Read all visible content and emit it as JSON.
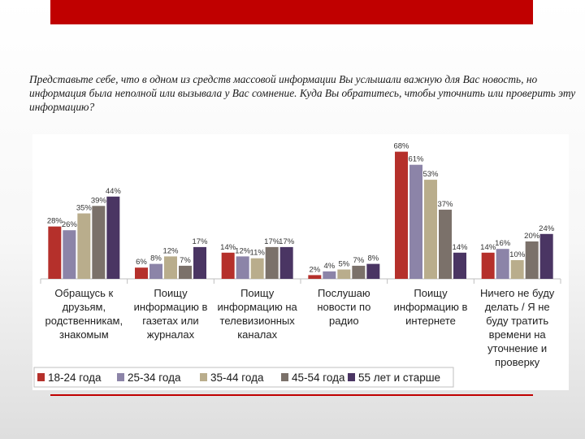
{
  "slide": {
    "question": "Представьте себе, что в одном из средств массовой информации Вы услышали важную для Вас новость, но информация была неполной или вызывала у Вас сомнение. Куда Вы обратитесь, чтобы уточнить или проверить эту информацию?"
  },
  "colors": {
    "accent": "#c00000",
    "series": [
      "#b5302b",
      "#8c84a8",
      "#b9ad8c",
      "#7b716a",
      "#4a3563"
    ]
  },
  "chart_data": {
    "type": "bar",
    "title": "",
    "xlabel": "",
    "ylabel": "",
    "ylim": [
      0,
      70
    ],
    "grid": false,
    "legend_position": "bottom-left",
    "categories": [
      [
        "Обращусь к",
        "друзьям,",
        "родственникам,",
        "знакомым"
      ],
      [
        "Поищу",
        "информацию в",
        "газетах или",
        "журналах"
      ],
      [
        "Поищу",
        "информацию на",
        "телевизионных",
        "каналах"
      ],
      [
        "Послушаю",
        "новости по",
        "радио"
      ],
      [
        "Поищу",
        "информацию в",
        "интернете"
      ],
      [
        "Ничего не буду",
        "делать / Я не",
        "буду тратить",
        "времени на",
        "уточнение и",
        "проверку"
      ]
    ],
    "series": [
      {
        "name": "18-24 года",
        "values": [
          28,
          6,
          14,
          2,
          68,
          14
        ]
      },
      {
        "name": "25-34 года",
        "values": [
          26,
          8,
          12,
          4,
          61,
          16
        ]
      },
      {
        "name": "35-44 года",
        "values": [
          35,
          12,
          11,
          5,
          53,
          10
        ]
      },
      {
        "name": "45-54 года",
        "values": [
          39,
          7,
          17,
          7,
          37,
          20
        ]
      },
      {
        "name": "55 лет и старше",
        "values": [
          44,
          17,
          17,
          8,
          14,
          24
        ]
      }
    ],
    "value_suffix": "%"
  }
}
